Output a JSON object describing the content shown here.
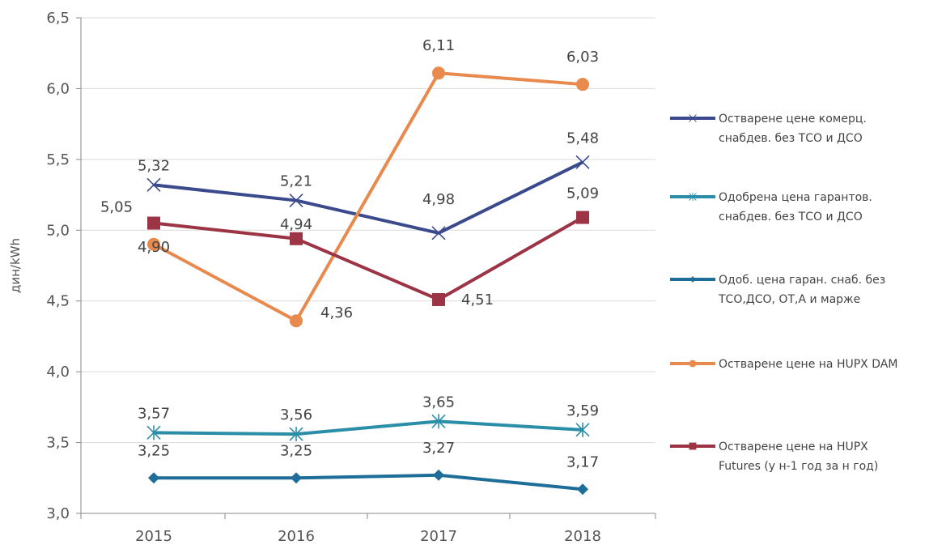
{
  "chart_data": {
    "type": "line",
    "categories": [
      "2015",
      "2016",
      "2017",
      "2018"
    ],
    "ylabel": "дин/kWh",
    "xlabel": "",
    "title": "",
    "ylim": [
      3.0,
      6.5
    ],
    "yticks": [
      "3,0",
      "3,5",
      "4,0",
      "4,5",
      "5,0",
      "5,5",
      "6,0",
      "6,5"
    ],
    "ytick_values": [
      3.0,
      3.5,
      4.0,
      4.5,
      5.0,
      5.5,
      6.0,
      6.5
    ],
    "grid": true,
    "legend_position": "right",
    "series": [
      {
        "name": "Остварене цене комерц. снабдев. без ТСО и ДСО",
        "legend_lines": [
          "Остварене цене комерц.",
          "снабдев. без ТСО и ДСО"
        ],
        "values": [
          5.32,
          5.21,
          4.98,
          5.48
        ],
        "labels": [
          "5,32",
          "5,21",
          "4,98",
          "5,48"
        ],
        "color": "#3a4a8c",
        "marker": "x"
      },
      {
        "name": "Одобрена цена гарантов. снабдев. без ТСО и ДСО",
        "legend_lines": [
          "Одобрена цена гарантов.",
          "снабдев. без ТСО и ДСО"
        ],
        "values": [
          3.57,
          3.56,
          3.65,
          3.59
        ],
        "labels": [
          "3,57",
          "3,56",
          "3,65",
          "3,59"
        ],
        "color": "#2a8ea8",
        "marker": "asterisk"
      },
      {
        "name": "Одоб. цена гаран. снаб. без ТСО,ДСО, ОТ,А и марже",
        "legend_lines": [
          "Одоб. цена гаран. снаб. без",
          "ТСО,ДСО, ОТ,А и марже"
        ],
        "values": [
          3.25,
          3.25,
          3.27,
          3.17
        ],
        "labels": [
          "3,25",
          "3,25",
          "3,27",
          "3,17"
        ],
        "color": "#1f6d99",
        "marker": "diamond"
      },
      {
        "name": "Остварене цене на HUPX DAM",
        "legend_lines": [
          "Остварене цене на HUPX DAM"
        ],
        "values": [
          4.9,
          4.36,
          6.11,
          6.03
        ],
        "labels": [
          "4,90",
          "4,36",
          "6,11",
          "6,03"
        ],
        "color": "#e88a4d",
        "marker": "circle"
      },
      {
        "name": "Остварене цене на HUPX Futures (у н-1 год за н год)",
        "legend_lines": [
          "Остварене цене на HUPX",
          "Futures (у н-1 год за н год)"
        ],
        "values": [
          5.05,
          4.94,
          4.51,
          5.09
        ],
        "labels": [
          "5,05",
          "4,94",
          "4,51",
          "5,09"
        ],
        "color": "#9c3445",
        "marker": "square"
      }
    ]
  }
}
